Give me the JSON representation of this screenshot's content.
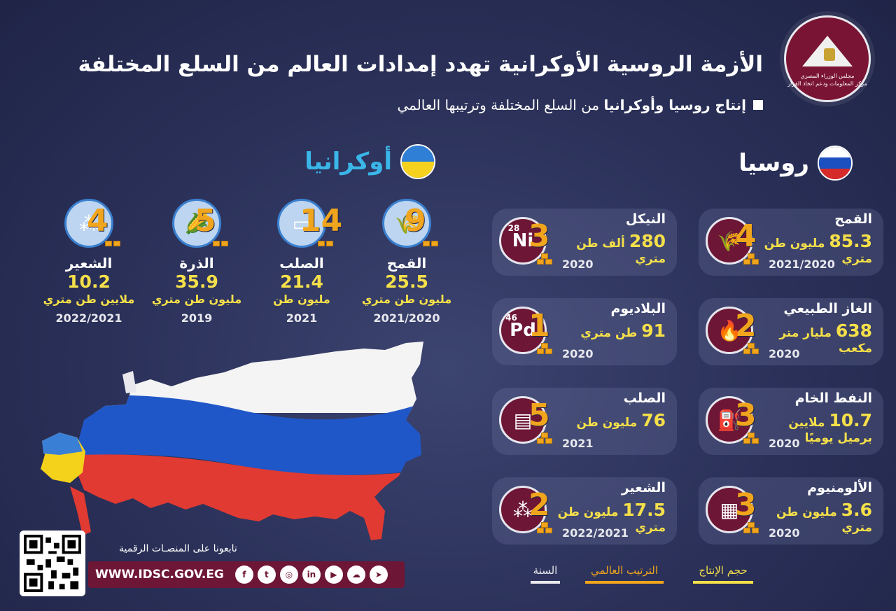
{
  "header": {
    "title": "الأزمة الروسية الأوكرانية تهدد إمدادات العالم من السلع المختلفة",
    "subtitle_bold": "إنتاج روسيا وأوكرانيا",
    "subtitle_rest": "من السلع المختلفة وترتيبها العالمي",
    "logo_text_1": "مجلس الوزراء المصري",
    "logo_text_2": "مركز المعلومات ودعم اتخاذ القرار"
  },
  "russia": {
    "name": "روسيا",
    "items": [
      {
        "name": "القمح",
        "value": "85.3",
        "unit": "مليون طن",
        "unit2": "متري",
        "year": "2021/2020",
        "rank": "4",
        "icon": "wheat-icon"
      },
      {
        "name": "النيكل",
        "value": "280",
        "unit": "ألف طن",
        "unit2": "متري",
        "year": "2020",
        "rank": "3",
        "icon": "nickel-icon",
        "icon_text": "Ni",
        "icon_num": "28"
      },
      {
        "name": "الغاز الطبيعي",
        "value": "638",
        "unit": "مليار متر",
        "unit2": "مكعب",
        "year": "2020",
        "rank": "2",
        "icon": "flame-icon"
      },
      {
        "name": "البلاديوم",
        "value": "91",
        "unit": "طن متري",
        "unit2": "",
        "year": "2020",
        "rank": "1",
        "icon": "palladium-icon",
        "icon_text": "Pd",
        "icon_num": "46"
      },
      {
        "name": "النفط الخام",
        "value": "10.7",
        "unit": "ملايين",
        "unit2": "برميل يوميًا",
        "year": "2020",
        "rank": "3",
        "icon": "oil-pump-icon"
      },
      {
        "name": "الصلب",
        "value": "76",
        "unit": "مليون طن",
        "unit2": "",
        "year": "2021",
        "rank": "5",
        "icon": "steel-icon"
      },
      {
        "name": "الألومنيوم",
        "value": "3.6",
        "unit": "مليون طن",
        "unit2": "متري",
        "year": "2020",
        "rank": "3",
        "icon": "aluminum-can-icon"
      },
      {
        "name": "الشعير",
        "value": "17.5",
        "unit": "مليون طن",
        "unit2": "متري",
        "year": "2022/2021",
        "rank": "2",
        "icon": "barley-icon"
      }
    ]
  },
  "ukraine": {
    "name": "أوكرانيا",
    "items": [
      {
        "name": "القمح",
        "value": "25.5",
        "unit": "مليون طن متري",
        "year": "2021/2020",
        "rank": "9",
        "icon": "wheat-icon"
      },
      {
        "name": "الصلب",
        "value": "21.4",
        "unit": "مليون طن",
        "year": "2021",
        "rank": "14",
        "icon": "steel-beam-icon"
      },
      {
        "name": "الذرة",
        "value": "35.9",
        "unit": "مليون طن متري",
        "year": "2019",
        "rank": "5",
        "icon": "corn-icon"
      },
      {
        "name": "الشعير",
        "value": "10.2",
        "unit": "ملايين طن متري",
        "year": "2022/2021",
        "rank": "4",
        "icon": "barley-icon"
      }
    ]
  },
  "legend": {
    "production": "حجم الإنتاج",
    "ranking": "الترتيب العالمي",
    "year": "السنة"
  },
  "footer": {
    "follow": "تابعونا على المنصـات الرقمية",
    "url": "WWW.IDSC.GOV.EG",
    "social": [
      "telegram",
      "soundcloud",
      "youtube",
      "linkedin",
      "instagram",
      "twitter",
      "facebook"
    ]
  },
  "colors": {
    "background": "#2a3058",
    "maroon": "#6e1636",
    "gold": "#f0a51c",
    "yellow": "#f5e04a",
    "ukraine_blue": "#3ab6e8"
  }
}
